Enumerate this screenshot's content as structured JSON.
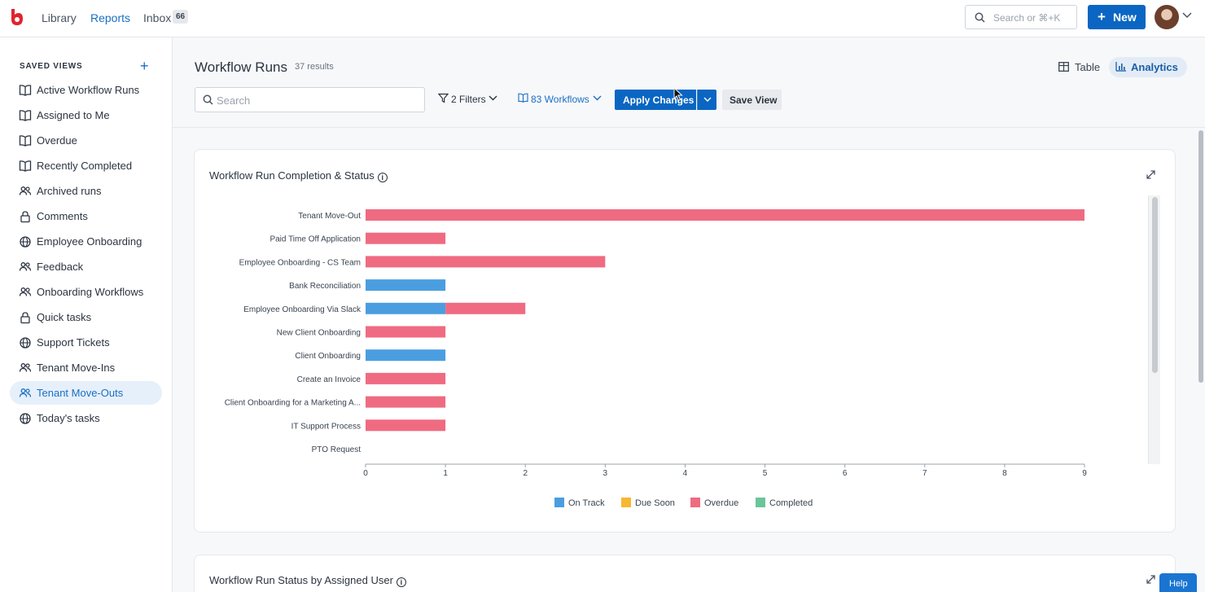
{
  "nav": {
    "library": "Library",
    "reports": "Reports",
    "inbox": "Inbox",
    "inbox_count": "66",
    "search_placeholder": "Search or ⌘+K",
    "new_label": "New"
  },
  "sidebar": {
    "title": "SAVED VIEWS",
    "items": [
      {
        "label": "Active Workflow Runs",
        "icon": "book-icon"
      },
      {
        "label": "Assigned to Me",
        "icon": "book-icon"
      },
      {
        "label": "Overdue",
        "icon": "book-icon"
      },
      {
        "label": "Recently Completed",
        "icon": "book-icon"
      },
      {
        "label": "Archived runs",
        "icon": "users-icon"
      },
      {
        "label": "Comments",
        "icon": "lock-icon"
      },
      {
        "label": "Employee Onboarding",
        "icon": "globe-icon"
      },
      {
        "label": "Feedback",
        "icon": "users-icon"
      },
      {
        "label": "Onboarding Workflows",
        "icon": "users-icon"
      },
      {
        "label": "Quick tasks",
        "icon": "lock-icon"
      },
      {
        "label": "Support Tickets",
        "icon": "globe-icon"
      },
      {
        "label": "Tenant Move-Ins",
        "icon": "users-icon"
      },
      {
        "label": "Tenant Move-Outs",
        "icon": "users-icon",
        "active": true
      },
      {
        "label": "Today's tasks",
        "icon": "globe-icon"
      }
    ]
  },
  "header": {
    "title": "Workflow Runs",
    "results": "37 results",
    "view_table": "Table",
    "view_analytics": "Analytics",
    "active_view": "Analytics"
  },
  "toolbar": {
    "search_placeholder": "Search",
    "filters_label": "2 Filters",
    "workflows_label": "83 Workflows",
    "apply_label": "Apply Changes",
    "save_view_label": "Save View"
  },
  "cards": {
    "completion_title": "Workflow Run Completion & Status",
    "assigned_user_title": "Workflow Run Status by Assigned User"
  },
  "colors": {
    "on_track": "#4a9ee0",
    "due_soon": "#f7b731",
    "overdue": "#ef6b82",
    "completed": "#6cc59a",
    "accent": "#0a66c2"
  },
  "chart_data": {
    "type": "bar",
    "orientation": "horizontal",
    "stacked": true,
    "categories": [
      "Tenant Move-Out",
      "Paid Time Off Application",
      "Employee Onboarding - CS Team",
      "Bank Reconciliation",
      "Employee Onboarding Via Slack",
      "New Client Onboarding",
      "Client Onboarding",
      "Create an Invoice",
      "Client Onboarding for a Marketing A...",
      "IT Support Process",
      "PTO Request"
    ],
    "series": [
      {
        "name": "On Track",
        "values": [
          0,
          0,
          0,
          1,
          1,
          0,
          1,
          0,
          0,
          0,
          0
        ]
      },
      {
        "name": "Due Soon",
        "values": [
          0,
          0,
          0,
          0,
          0,
          0,
          0,
          0,
          0,
          0,
          0
        ]
      },
      {
        "name": "Overdue",
        "values": [
          9,
          1,
          3,
          0,
          1,
          1,
          0,
          1,
          1,
          1,
          0
        ]
      },
      {
        "name": "Completed",
        "values": [
          0,
          0,
          0,
          0,
          0,
          0,
          0,
          0,
          0,
          0,
          0
        ]
      }
    ],
    "xlim": [
      0,
      9
    ],
    "xticks": [
      "0",
      "1",
      "2",
      "3",
      "4",
      "5",
      "6",
      "7",
      "8",
      "9"
    ],
    "legend_position": "bottom",
    "grid": false
  }
}
